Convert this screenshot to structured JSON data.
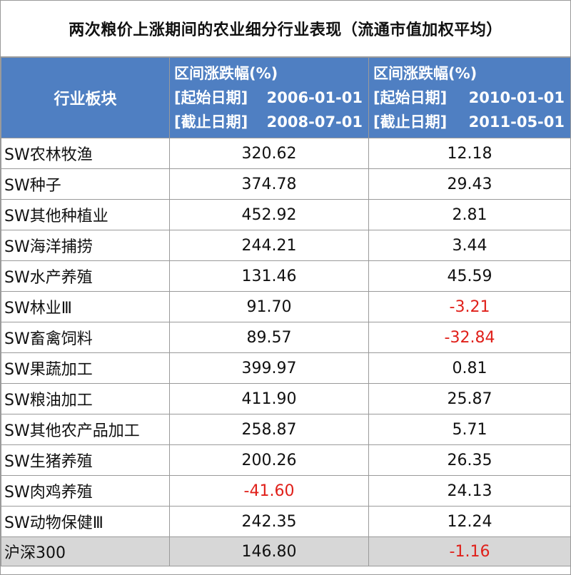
{
  "title": "两次粮价上涨期间的农业细分行业表现（流通市值加权平均）",
  "colors": {
    "header_bg": "#4f7fc2",
    "header_text": "#ffffff",
    "negative": "#e0201a",
    "summary_bg": "#d7d7d7"
  },
  "chart_data": {
    "type": "table",
    "title": "两次粮价上涨期间的农业细分行业表现（流通市值加权平均）",
    "columns": [
      {
        "label": "行业板块"
      },
      {
        "label": "区间涨跌幅(%)",
        "start_label": "[起始日期]",
        "start_date": "2006-01-01",
        "end_label": "[截止日期]",
        "end_date": "2008-07-01"
      },
      {
        "label": "区间涨跌幅(%)",
        "start_label": "[起始日期]",
        "start_date": "2010-01-01",
        "end_label": "[截止日期]",
        "end_date": "2011-05-01"
      }
    ],
    "rows": [
      {
        "name": "SW农林牧渔",
        "v1": "320.62",
        "v2": "12.18"
      },
      {
        "name": "SW种子",
        "v1": "374.78",
        "v2": "29.43"
      },
      {
        "name": "SW其他种植业",
        "v1": "452.92",
        "v2": "2.81"
      },
      {
        "name": "SW海洋捕捞",
        "v1": "244.21",
        "v2": "3.44"
      },
      {
        "name": "SW水产养殖",
        "v1": "131.46",
        "v2": "45.59"
      },
      {
        "name": "SW林业Ⅲ",
        "v1": "91.70",
        "v2": "-3.21"
      },
      {
        "name": "SW畜禽饲料",
        "v1": "89.57",
        "v2": "-32.84"
      },
      {
        "name": "SW果蔬加工",
        "v1": "399.97",
        "v2": "0.81"
      },
      {
        "name": "SW粮油加工",
        "v1": "411.90",
        "v2": "25.87"
      },
      {
        "name": "SW其他农产品加工",
        "v1": "258.87",
        "v2": "5.71"
      },
      {
        "name": "SW生猪养殖",
        "v1": "200.26",
        "v2": "26.35"
      },
      {
        "name": "SW肉鸡养殖",
        "v1": "-41.60",
        "v2": "24.13"
      },
      {
        "name": "SW动物保健Ⅲ",
        "v1": "242.35",
        "v2": "12.24"
      }
    ],
    "summary": {
      "name": "沪深300",
      "v1": "146.80",
      "v2": "-1.16"
    }
  }
}
